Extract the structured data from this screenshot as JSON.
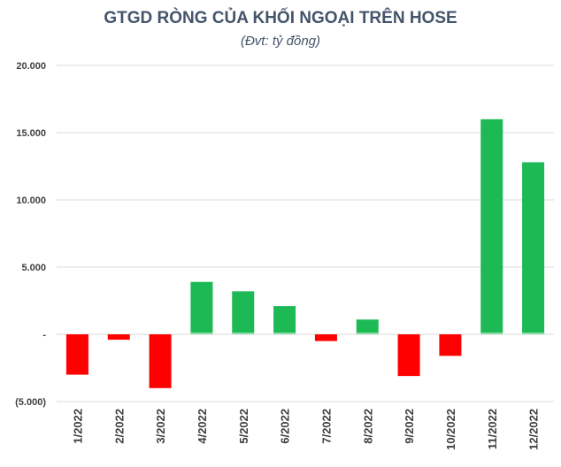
{
  "chart_data": {
    "type": "bar",
    "title": "GTGD RÒNG CỦA KHỐI NGOẠI TRÊN HOSE",
    "subtitle": "(Đvt: tỷ đồng)",
    "xlabel": "",
    "ylabel": "",
    "categories": [
      "1/2022",
      "2/2022",
      "3/2022",
      "4/2022",
      "5/2022",
      "6/2022",
      "7/2022",
      "8/2022",
      "9/2022",
      "10/2022",
      "11/2022",
      "12/2022"
    ],
    "values": [
      -3000,
      -400,
      -4000,
      3900,
      3200,
      2100,
      -500,
      1100,
      -3100,
      -1600,
      16000,
      12800
    ],
    "ylim": [
      -5000,
      20000
    ],
    "yticks": [
      {
        "value": 20000,
        "label": "20.000"
      },
      {
        "value": 15000,
        "label": "15.000"
      },
      {
        "value": 10000,
        "label": "10.000"
      },
      {
        "value": 5000,
        "label": "5.000"
      },
      {
        "value": 0,
        "label": "-"
      },
      {
        "value": -5000,
        "label": "(5.000)"
      }
    ],
    "grid": true,
    "legend": "none",
    "colors": {
      "positive": "#1db954",
      "negative": "#ff0000",
      "zero_line": "#ffffff"
    }
  }
}
